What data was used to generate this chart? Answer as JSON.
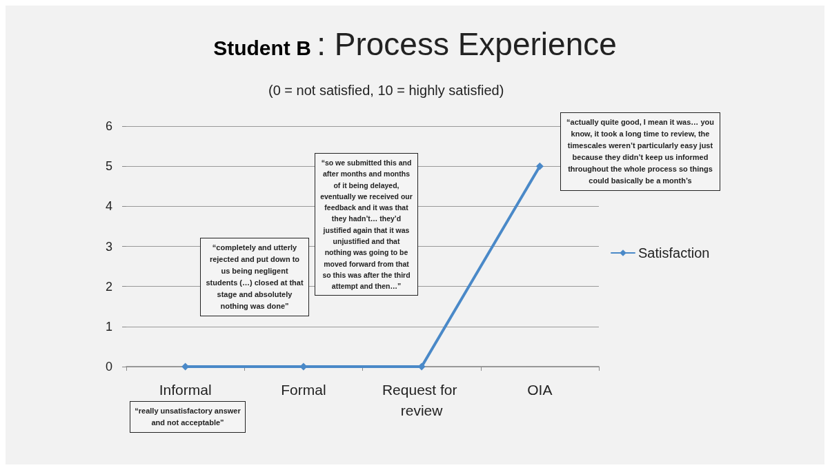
{
  "chart_data": {
    "type": "line",
    "title": "Student B : Process Experience",
    "subtitle": "(0 = not satisfied, 10 = highly satisfied)",
    "categories": [
      "Informal",
      "Formal",
      "Request for review",
      "OIA"
    ],
    "series": [
      {
        "name": "Satisfaction",
        "color": "#4a89c8",
        "values": [
          0,
          0,
          0,
          5
        ]
      }
    ],
    "ylim": [
      0,
      6
    ],
    "yticks": [
      0,
      1,
      2,
      3,
      4,
      5,
      6
    ],
    "grid": "y",
    "legend": "right",
    "marker": "diamond",
    "line_style": "solid",
    "annotations": [
      "“really unsatisfactory answer and not acceptable”",
      "“completely and utterly rejected and put down to us being negligent students (…) closed at that stage and absolutely nothing was done”",
      "“so we submitted this and after months and months of it being delayed, eventually we received our feedback and it was that they hadn’t… they’d justified again that it was unjustified and that nothing was going to be moved forward from that so this was after the third attempt and then…”",
      "“actually quite good, I mean it was… you know, it took a long time to review, the timescales weren’t particularly easy just because they didn’t keep us informed throughout the whole process so things could basically be a month’s"
    ]
  }
}
